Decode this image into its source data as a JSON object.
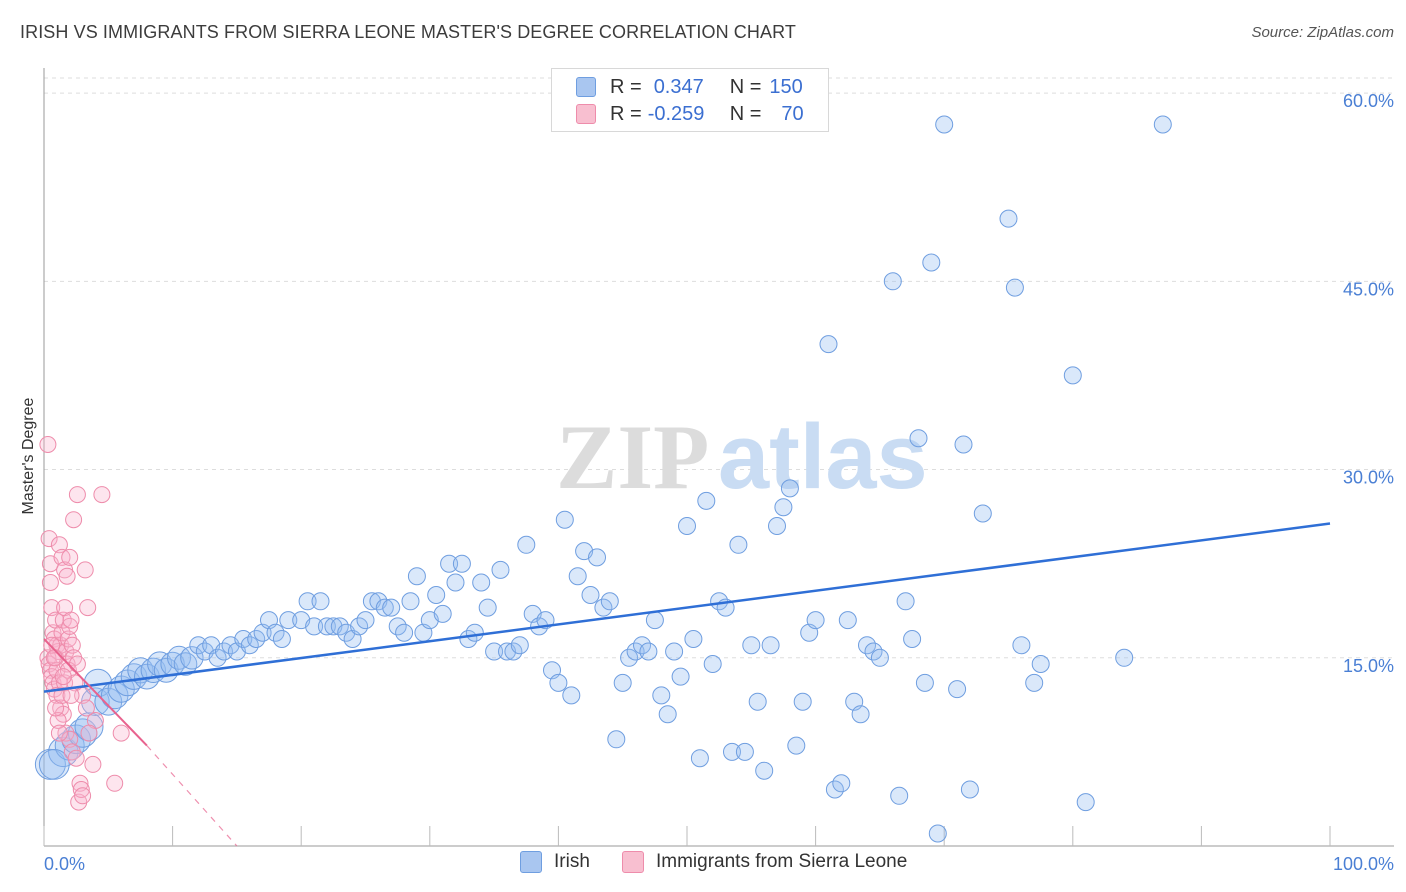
{
  "title": "IRISH VS IMMIGRANTS FROM SIERRA LEONE MASTER'S DEGREE CORRELATION CHART",
  "source": "Source: ZipAtlas.com",
  "watermark": {
    "zip": "ZIP",
    "atlas": "atlas"
  },
  "legend": {
    "r_label": "R =",
    "n_label": "N =",
    "series": [
      {
        "name": "Irish",
        "r": "0.347",
        "n": "150",
        "color": "#a9c6f0",
        "border": "#6f9ee0"
      },
      {
        "name": "Immigrants from Sierra Leone",
        "r": "-0.259",
        "n": "70",
        "color": "#f8bfd0",
        "border": "#ee8cab"
      }
    ]
  },
  "chart_data": {
    "type": "scatter",
    "title": "IRISH VS IMMIGRANTS FROM SIERRA LEONE MASTER'S DEGREE CORRELATION CHART",
    "xlabel": "",
    "ylabel": "Master's Degree",
    "xlim": [
      0,
      100
    ],
    "ylim": [
      0,
      62
    ],
    "x_tick_labels": [
      "0.0%",
      "100.0%"
    ],
    "y_ticks": [
      15,
      30,
      45,
      60
    ],
    "y_tick_labels": [
      "15.0%",
      "30.0%",
      "45.0%",
      "60.0%"
    ],
    "grid": true,
    "series": [
      {
        "name": "Irish",
        "color": "#7aa7e6",
        "trend": {
          "x": [
            0,
            100
          ],
          "y": [
            12.3,
            25.7
          ],
          "color": "#2f6fd6"
        },
        "points": [
          [
            0.5,
            6.5
          ],
          [
            1.5,
            7.5
          ],
          [
            2,
            8
          ],
          [
            2.5,
            8.5
          ],
          [
            3,
            9
          ],
          [
            3.5,
            9.5
          ],
          [
            4,
            11.5
          ],
          [
            4.2,
            13
          ],
          [
            5,
            11.5
          ],
          [
            5.5,
            12
          ],
          [
            6,
            12.5
          ],
          [
            6.5,
            13
          ],
          [
            7,
            13.5
          ],
          [
            7.5,
            14
          ],
          [
            8,
            13.5
          ],
          [
            8.5,
            14
          ],
          [
            9,
            14.5
          ],
          [
            9.5,
            14
          ],
          [
            10,
            14.5
          ],
          [
            10.5,
            15
          ],
          [
            11,
            14.5
          ],
          [
            11.5,
            15
          ],
          [
            12,
            16
          ],
          [
            12.5,
            15.5
          ],
          [
            13,
            16
          ],
          [
            13.5,
            15
          ],
          [
            14,
            15.5
          ],
          [
            14.5,
            16
          ],
          [
            15,
            15.5
          ],
          [
            15.5,
            16.5
          ],
          [
            16,
            16
          ],
          [
            16.5,
            16.5
          ],
          [
            17,
            17
          ],
          [
            17.5,
            18
          ],
          [
            18,
            17
          ],
          [
            18.5,
            16.5
          ],
          [
            19,
            18
          ],
          [
            20,
            18
          ],
          [
            20.5,
            19.5
          ],
          [
            21,
            17.5
          ],
          [
            21.5,
            19.5
          ],
          [
            22,
            17.5
          ],
          [
            22.5,
            17.5
          ],
          [
            23,
            17.5
          ],
          [
            23.5,
            17
          ],
          [
            24,
            16.5
          ],
          [
            24.5,
            17.5
          ],
          [
            25,
            18
          ],
          [
            25.5,
            19.5
          ],
          [
            26,
            19.5
          ],
          [
            26.5,
            19
          ],
          [
            27,
            19
          ],
          [
            27.5,
            17.5
          ],
          [
            28,
            17
          ],
          [
            28.5,
            19.5
          ],
          [
            29,
            21.5
          ],
          [
            29.5,
            17
          ],
          [
            30,
            18
          ],
          [
            30.5,
            20
          ],
          [
            31,
            18.5
          ],
          [
            31.5,
            22.5
          ],
          [
            32,
            21
          ],
          [
            32.5,
            22.5
          ],
          [
            33,
            16.5
          ],
          [
            33.5,
            17
          ],
          [
            34,
            21
          ],
          [
            34.5,
            19
          ],
          [
            35,
            15.5
          ],
          [
            35.5,
            22
          ],
          [
            36,
            15.5
          ],
          [
            36.5,
            15.5
          ],
          [
            37,
            16
          ],
          [
            37.5,
            24
          ],
          [
            38,
            18.5
          ],
          [
            38.5,
            17.5
          ],
          [
            39,
            18
          ],
          [
            39.5,
            14
          ],
          [
            40,
            13
          ],
          [
            40.5,
            26
          ],
          [
            41,
            12
          ],
          [
            41.5,
            21.5
          ],
          [
            42,
            23.5
          ],
          [
            42.5,
            20
          ],
          [
            43,
            23
          ],
          [
            43.5,
            19
          ],
          [
            44,
            19.5
          ],
          [
            44.5,
            8.5
          ],
          [
            45,
            13
          ],
          [
            45.5,
            15
          ],
          [
            46,
            15.5
          ],
          [
            46.5,
            16
          ],
          [
            47,
            15.5
          ],
          [
            47.5,
            18
          ],
          [
            48,
            12
          ],
          [
            48.5,
            10.5
          ],
          [
            49,
            15.5
          ],
          [
            49.5,
            13.5
          ],
          [
            50,
            25.5
          ],
          [
            50.5,
            16.5
          ],
          [
            51,
            7
          ],
          [
            51.5,
            27.5
          ],
          [
            52,
            14.5
          ],
          [
            52.5,
            19.5
          ],
          [
            53,
            19
          ],
          [
            53.5,
            7.5
          ],
          [
            54,
            24
          ],
          [
            54.5,
            7.5
          ],
          [
            55,
            16
          ],
          [
            55.5,
            11.5
          ],
          [
            56,
            6
          ],
          [
            56.5,
            16
          ],
          [
            57,
            25.5
          ],
          [
            57.5,
            27
          ],
          [
            58,
            28.5
          ],
          [
            58.5,
            8
          ],
          [
            59,
            11.5
          ],
          [
            59.5,
            17
          ],
          [
            60,
            18
          ],
          [
            61,
            40
          ],
          [
            61.5,
            4.5
          ],
          [
            62,
            5
          ],
          [
            62.5,
            18
          ],
          [
            63,
            11.5
          ],
          [
            63.5,
            10.5
          ],
          [
            64,
            16
          ],
          [
            64.5,
            15.5
          ],
          [
            65,
            15
          ],
          [
            66,
            45
          ],
          [
            66.5,
            4
          ],
          [
            67,
            19.5
          ],
          [
            67.5,
            16.5
          ],
          [
            68,
            32.5
          ],
          [
            68.5,
            13
          ],
          [
            69,
            46.5
          ],
          [
            69.5,
            1
          ],
          [
            70,
            57.5
          ],
          [
            71,
            12.5
          ],
          [
            71.5,
            32
          ],
          [
            72,
            4.5
          ],
          [
            73,
            26.5
          ],
          [
            75,
            50
          ],
          [
            75.5,
            44.5
          ],
          [
            76,
            16
          ],
          [
            77,
            13
          ],
          [
            77.5,
            14.5
          ],
          [
            80,
            37.5
          ],
          [
            81,
            3.5
          ],
          [
            84,
            15
          ],
          [
            87,
            57.5
          ],
          [
            0.8,
            6.5
          ]
        ]
      },
      {
        "name": "Immigrants from Sierra Leone",
        "color": "#f29cb7",
        "trend": {
          "x": [
            0,
            8
          ],
          "y": [
            16.5,
            8
          ],
          "dash_to": [
            15,
            0
          ],
          "color": "#e8628e"
        },
        "points": [
          [
            0.3,
            32
          ],
          [
            0.4,
            24.5
          ],
          [
            0.5,
            21
          ],
          [
            0.5,
            22.5
          ],
          [
            0.6,
            19
          ],
          [
            0.7,
            17
          ],
          [
            0.8,
            16.5
          ],
          [
            0.9,
            18
          ],
          [
            1,
            16
          ],
          [
            1.1,
            15.5
          ],
          [
            0.3,
            15
          ],
          [
            0.4,
            14.5
          ],
          [
            0.5,
            14
          ],
          [
            0.6,
            13.5
          ],
          [
            0.7,
            13
          ],
          [
            0.8,
            12.5
          ],
          [
            0.9,
            15
          ],
          [
            1,
            14
          ],
          [
            1.2,
            13
          ],
          [
            1.3,
            16
          ],
          [
            1.4,
            17
          ],
          [
            1.5,
            18
          ],
          [
            1.6,
            19
          ],
          [
            1.7,
            15.5
          ],
          [
            1.8,
            14.5
          ],
          [
            1.9,
            16.5
          ],
          [
            2,
            17.5
          ],
          [
            2.1,
            18
          ],
          [
            2.2,
            16
          ],
          [
            2.3,
            15
          ],
          [
            1.2,
            24
          ],
          [
            1.4,
            23
          ],
          [
            1.6,
            22
          ],
          [
            1.8,
            21.5
          ],
          [
            2,
            23
          ],
          [
            2.3,
            26
          ],
          [
            2.6,
            28
          ],
          [
            3.2,
            22
          ],
          [
            3.4,
            19
          ],
          [
            4,
            10
          ],
          [
            1,
            12
          ],
          [
            1.3,
            11
          ],
          [
            1.5,
            10.5
          ],
          [
            1.7,
            9
          ],
          [
            2,
            8.5
          ],
          [
            2.2,
            7.5
          ],
          [
            2.5,
            7
          ],
          [
            2.8,
            5
          ],
          [
            2.7,
            3.5
          ],
          [
            2.9,
            4.5
          ],
          [
            3,
            4
          ],
          [
            3.5,
            9
          ],
          [
            3.8,
            6.5
          ],
          [
            4.5,
            28
          ],
          [
            5.5,
            5
          ],
          [
            6,
            9
          ],
          [
            1.1,
            10
          ],
          [
            0.9,
            11
          ],
          [
            1.4,
            12
          ],
          [
            1.6,
            13
          ],
          [
            1.9,
            14
          ],
          [
            2.4,
            13
          ],
          [
            2.6,
            14.5
          ],
          [
            3,
            12
          ],
          [
            3.3,
            11
          ],
          [
            0.6,
            16
          ],
          [
            0.8,
            15
          ],
          [
            1.5,
            13.5
          ],
          [
            1.2,
            9
          ],
          [
            2.1,
            12
          ]
        ]
      }
    ]
  }
}
